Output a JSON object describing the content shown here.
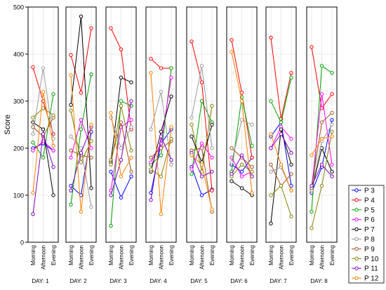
{
  "chart_data": {
    "type": "line",
    "ylabel": "Score",
    "ylim": [
      0,
      500
    ],
    "yticks": [
      0,
      100,
      200,
      300,
      400,
      500
    ],
    "xticks": [
      "Morning",
      "Afternoon",
      "Evening"
    ],
    "grid": true,
    "legend_position": "right",
    "days": [
      "DAY: 1",
      "DAY: 2",
      "DAY: 3",
      "DAY: 4",
      "DAY: 5",
      "DAY: 6",
      "DAY: 7",
      "DAY: 8"
    ],
    "series": [
      {
        "name": "P 3",
        "color": "#0000ff",
        "values": [
          [
            200,
            210,
            195
          ],
          [
            120,
            100,
            235
          ],
          [
            150,
            95,
            140
          ],
          [
            105,
            210,
            240
          ],
          [
            160,
            100,
            112
          ],
          [
            165,
            150,
            180
          ],
          [
            225,
            255,
            120
          ],
          [
            105,
            160,
            260
          ]
        ]
      },
      {
        "name": "P 4",
        "color": "#ff0000",
        "values": [
          [
            372,
            300,
            230
          ],
          [
            398,
            318,
            455
          ],
          [
            455,
            410,
            240
          ],
          [
            390,
            370,
            370
          ],
          [
            427,
            340,
            110
          ],
          [
            430,
            318,
            180
          ],
          [
            435,
            262,
            360
          ],
          [
            415,
            285,
            315
          ]
        ]
      },
      {
        "name": "P 5",
        "color": "#00a000",
        "values": [
          [
            212,
            180,
            315
          ],
          [
            80,
            240,
            357
          ],
          [
            35,
            300,
            290
          ],
          [
            165,
            185,
            370
          ],
          [
            145,
            300,
            255
          ],
          [
            150,
            308,
            205
          ],
          [
            300,
            255,
            350
          ],
          [
            65,
            375,
            360
          ]
        ]
      },
      {
        "name": "P 6",
        "color": "#ff00ff",
        "values": [
          [
            195,
            215,
            195
          ],
          [
            180,
            260,
            200
          ],
          [
            110,
            245,
            260
          ],
          [
            170,
            210,
            350
          ],
          [
            155,
            210,
            180
          ],
          [
            180,
            140,
            150
          ],
          [
            200,
            245,
            220
          ],
          [
            115,
            315,
            165
          ]
        ]
      },
      {
        "name": "P 7",
        "color": "#000000",
        "values": [
          [
            255,
            240,
            100
          ],
          [
            292,
            480,
            115
          ],
          [
            170,
            350,
            340
          ],
          [
            150,
            235,
            310
          ],
          [
            225,
            170,
            250
          ],
          [
            130,
            115,
            100
          ],
          [
            40,
            240,
            165
          ],
          [
            110,
            200,
            150
          ]
        ]
      },
      {
        "name": "P 8",
        "color": "#999999",
        "values": [
          [
            230,
            370,
            220
          ],
          [
            225,
            200,
            75
          ],
          [
            265,
            200,
            245
          ],
          [
            240,
            320,
            165
          ],
          [
            265,
            375,
            200
          ],
          [
            170,
            260,
            250
          ],
          [
            150,
            160,
            110
          ],
          [
            110,
            215,
            250
          ]
        ]
      },
      {
        "name": "P 9",
        "color": "#a05020",
        "values": [
          [
            245,
            225,
            265
          ],
          [
            195,
            185,
            180
          ],
          [
            175,
            255,
            150
          ],
          [
            180,
            200,
            215
          ],
          [
            195,
            200,
            65
          ],
          [
            200,
            180,
            160
          ],
          [
            165,
            120,
            145
          ],
          [
            115,
            255,
            275
          ]
        ]
      },
      {
        "name": "P 10",
        "color": "#808000",
        "values": [
          [
            265,
            285,
            270
          ],
          [
            280,
            170,
            215
          ],
          [
            165,
            290,
            195
          ],
          [
            155,
            140,
            220
          ],
          [
            250,
            150,
            290
          ],
          [
            140,
            165,
            150
          ],
          [
            100,
            120,
            55
          ],
          [
            30,
            120,
            235
          ]
        ]
      },
      {
        "name": "P 11",
        "color": "#8000c0",
        "values": [
          [
            60,
            230,
            160
          ],
          [
            110,
            190,
            245
          ],
          [
            100,
            175,
            300
          ],
          [
            90,
            225,
            175
          ],
          [
            190,
            140,
            150
          ],
          [
            145,
            185,
            140
          ],
          [
            200,
            230,
            190
          ],
          [
            120,
            165,
            140
          ]
        ]
      },
      {
        "name": "P 12",
        "color": "#ff8000",
        "values": [
          [
            105,
            320,
            205
          ],
          [
            355,
            65,
            250
          ],
          [
            275,
            140,
            180
          ],
          [
            360,
            60,
            245
          ],
          [
            185,
            165,
            70
          ],
          [
            405,
            300,
            105
          ],
          [
            230,
            165,
            110
          ],
          [
            185,
            220,
            225
          ]
        ]
      }
    ]
  }
}
